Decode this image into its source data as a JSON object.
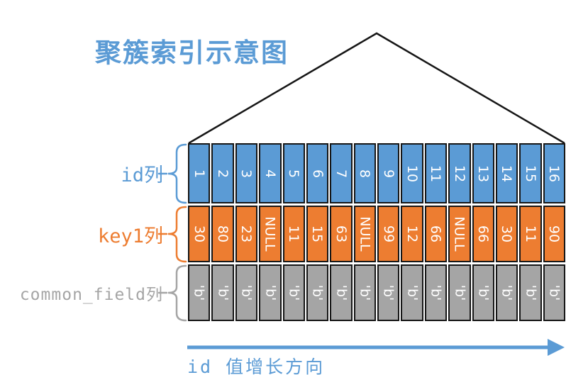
{
  "title": "聚簇索引示意图",
  "palette": {
    "blue": "#5b9bd5",
    "orange": "#ed7d31",
    "gray": "#a5a5a5",
    "cell_text": "#ffffff",
    "outline": "#161616",
    "arrow_blue": "#5b9bd5"
  },
  "columns": [
    {
      "label": "id列",
      "color": "#5b9bd5",
      "values": [
        "1",
        "2",
        "3",
        "4",
        "5",
        "6",
        "7",
        "8",
        "9",
        "10",
        "11",
        "12",
        "13",
        "14",
        "15",
        "16"
      ]
    },
    {
      "label": "key1列",
      "color": "#ed7d31",
      "values": [
        "30",
        "80",
        "23",
        "NULL",
        "11",
        "15",
        "63",
        "NULL",
        "99",
        "12",
        "66",
        "NULL",
        "66",
        "30",
        "11",
        "90"
      ]
    },
    {
      "label": "common_field列",
      "color": "#a5a5a5",
      "values": [
        "'b'",
        "'b'",
        "'b'",
        "'b'",
        "'b'",
        "'b'",
        "'b'",
        "'b'",
        "'b'",
        "'b'",
        "'b'",
        "'b'",
        "'b'",
        "'b'",
        "'b'",
        "'b'"
      ]
    }
  ],
  "arrow": {
    "label": "id 值增长方向"
  }
}
